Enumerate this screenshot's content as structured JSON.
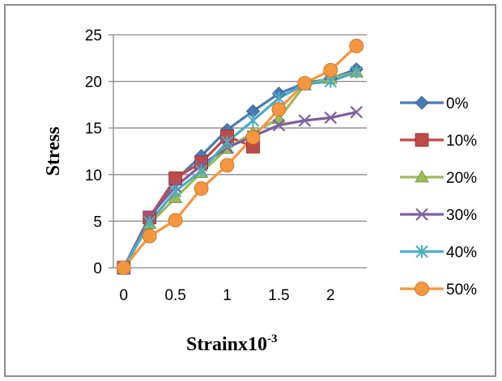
{
  "chart_data": {
    "type": "line",
    "title": "",
    "xlabel": "Strainx10",
    "xlabel_superscript": "-3",
    "ylabel": "Stress",
    "xlim": [
      -0.1,
      2.35
    ],
    "ylim": [
      0,
      25
    ],
    "x_ticks": [
      "0",
      "0.5",
      "1",
      "1.5",
      "2"
    ],
    "y_ticks": [
      "0",
      "5",
      "10",
      "15",
      "20",
      "25"
    ],
    "grid": "horizontal",
    "legend_position": "right",
    "series": [
      {
        "name": "0%",
        "color": "#4a7ab5",
        "marker": "diamond",
        "x": [
          0,
          0.25,
          0.5,
          0.75,
          1.0,
          1.25,
          1.5,
          1.75,
          2.0,
          2.25
        ],
        "y": [
          0,
          5.2,
          9.4,
          12.0,
          14.8,
          16.8,
          18.7,
          19.8,
          20.3,
          21.3
        ]
      },
      {
        "name": "10%",
        "color": "#bf4b48",
        "marker": "square",
        "x": [
          0,
          0.25,
          0.5,
          0.75,
          1.0,
          1.25
        ],
        "y": [
          0,
          5.4,
          9.6,
          11.3,
          14.1,
          13.0
        ]
      },
      {
        "name": "20%",
        "color": "#9bbb59",
        "marker": "triangle",
        "x": [
          0,
          0.25,
          0.5,
          0.75,
          1.0,
          1.25,
          1.5,
          1.75,
          2.0,
          2.25
        ],
        "y": [
          0,
          4.7,
          7.5,
          10.2,
          12.8,
          14.5,
          16.0,
          19.6,
          20.3,
          21.0
        ]
      },
      {
        "name": "30%",
        "color": "#7c5fa0",
        "marker": "x",
        "x": [
          0,
          0.25,
          0.5,
          0.75,
          1.0,
          1.25,
          1.5,
          1.75,
          2.0,
          2.25
        ],
        "y": [
          0,
          5.5,
          8.7,
          11.0,
          12.9,
          14.1,
          15.3,
          15.8,
          16.1,
          16.7
        ]
      },
      {
        "name": "40%",
        "color": "#4aacc6",
        "marker": "star",
        "x": [
          0,
          0.25,
          0.5,
          0.75,
          1.0,
          1.25,
          1.5,
          1.75,
          2.0,
          2.25
        ],
        "y": [
          0,
          4.9,
          8.2,
          10.4,
          13.5,
          15.8,
          18.2,
          19.7,
          20.0,
          21.0
        ]
      },
      {
        "name": "50%",
        "color": "#f59640",
        "marker": "circle",
        "x": [
          0,
          0.25,
          0.5,
          0.75,
          1.0,
          1.25,
          1.5,
          1.75,
          2.0,
          2.25
        ],
        "y": [
          0,
          3.4,
          5.1,
          8.5,
          11.0,
          14.0,
          17.0,
          19.8,
          21.2,
          23.8
        ]
      }
    ]
  }
}
